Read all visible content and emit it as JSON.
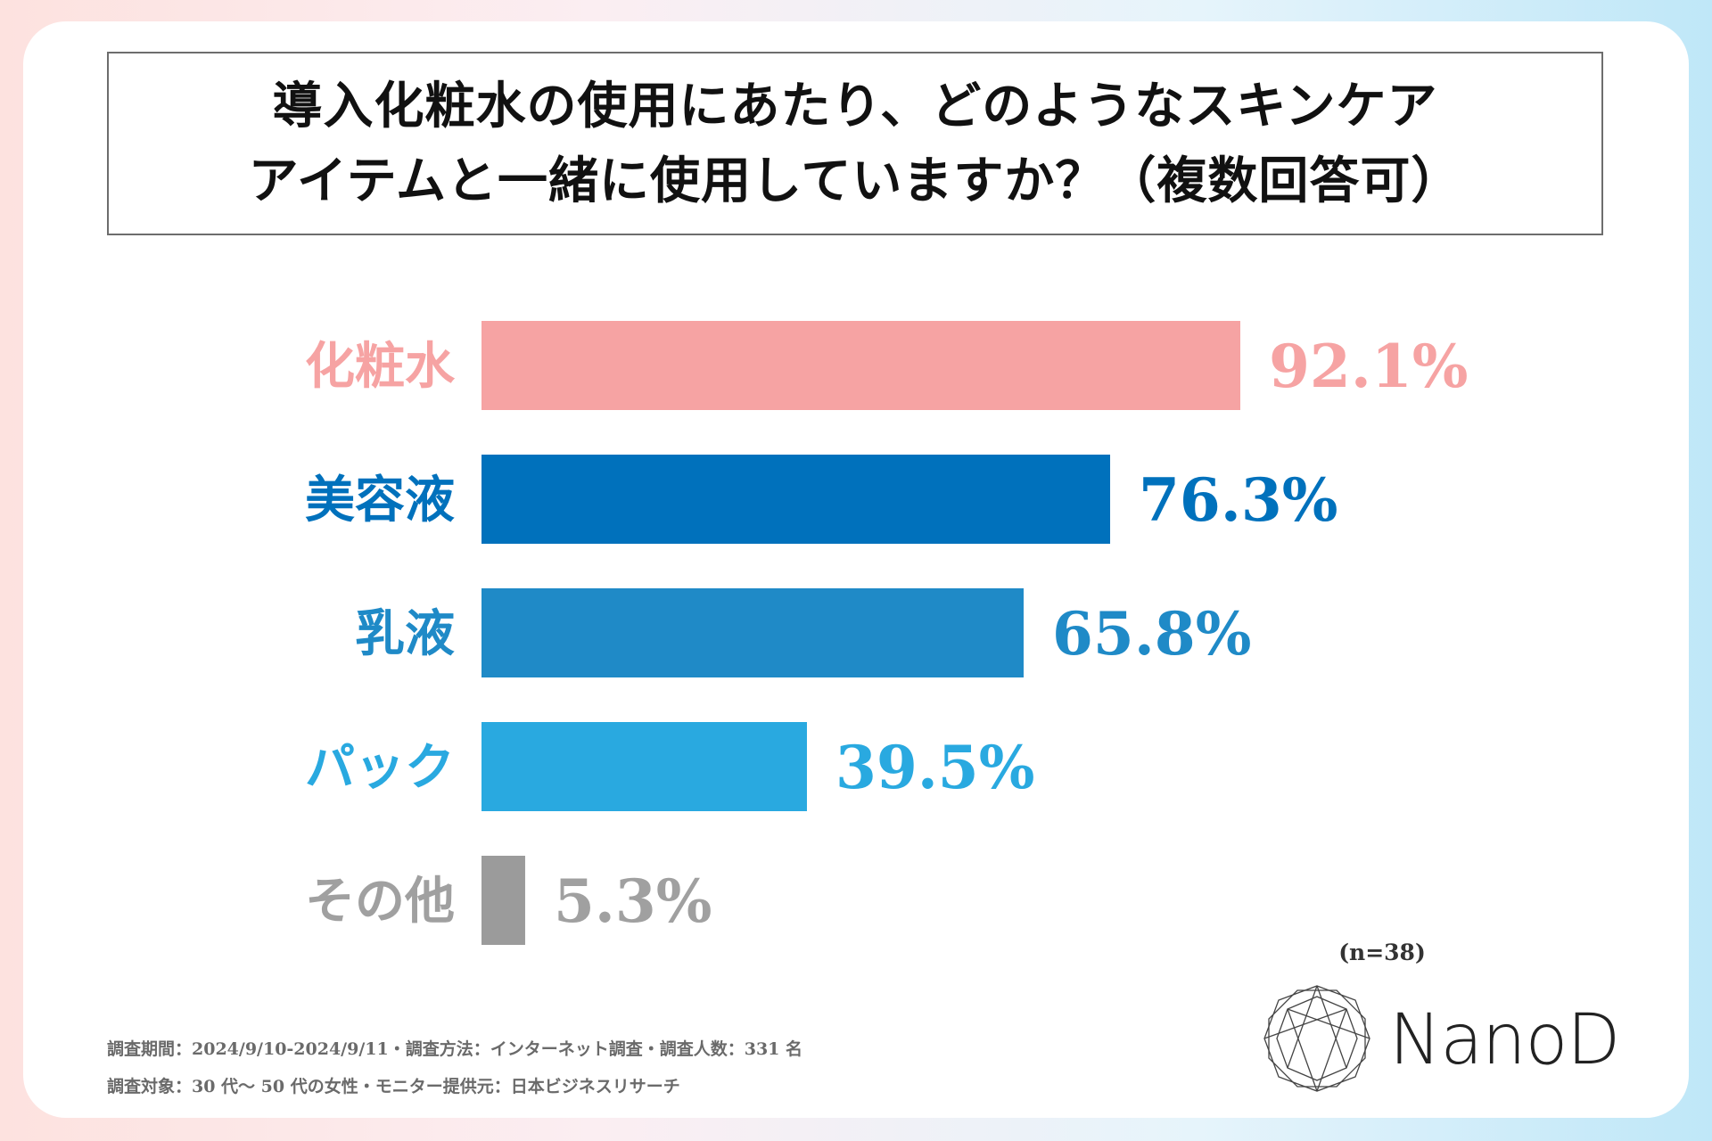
{
  "title": {
    "line1": "導入化粧水の使用にあたり、どのようなスキンケア",
    "line2": "アイテムと一緒に使用していますか？（複数回答可）"
  },
  "chart_data": {
    "type": "bar",
    "orientation": "horizontal",
    "categories": [
      "化粧水",
      "美容液",
      "乳液",
      "パック",
      "その他"
    ],
    "values": [
      92.1,
      76.3,
      65.8,
      39.5,
      5.3
    ],
    "value_labels": [
      "92.1%",
      "76.3%",
      "65.8%",
      "39.5%",
      "5.3%"
    ],
    "colors": [
      "#f6a3a3",
      "#0071bc",
      "#1f8ac7",
      "#29a9e0",
      "#9b9b9b"
    ],
    "label_colors": [
      "#f6a3a3",
      "#0071bc",
      "#1f8ac7",
      "#29a9e0",
      "#a0a0a0"
    ],
    "xlim": [
      0,
      100
    ],
    "unit": "%"
  },
  "sample": "(n=38)",
  "footnotes": {
    "line1": "調査期間：2024/9/10-2024/9/11・調査方法：インターネット調査・調査人数：331 名",
    "line2": "調査対象：30 代～ 50 代の女性・モニター提供元：日本ビジネスリサーチ"
  },
  "logo": {
    "text": "NanoD",
    "icon": "diamond-logo-icon"
  }
}
